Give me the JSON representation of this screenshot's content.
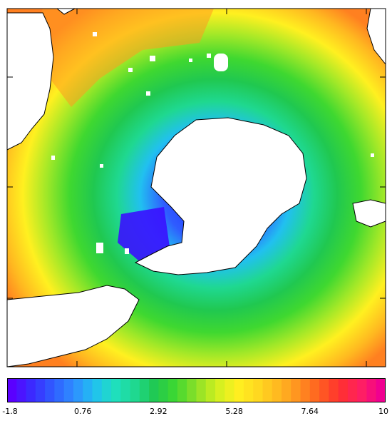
{
  "map": {
    "projection": "south-polar-stereographic",
    "subject": "sea surface field around Antarctica",
    "land_color": "#ffffff",
    "coast_color": "#000000"
  },
  "colorbar": {
    "min": -1.8,
    "max": 10,
    "colors": [
      "#5a00ff",
      "#3a2cff",
      "#2f5cff",
      "#2f8cff",
      "#21c0f0",
      "#1fe0c0",
      "#1fd890",
      "#20c850",
      "#3fd830",
      "#8ce028",
      "#d0f020",
      "#fff020",
      "#ffd820",
      "#ffb820",
      "#ff9020",
      "#ff6020",
      "#ff3030",
      "#ff2060",
      "#f00090"
    ],
    "ticks": [
      "-1.8",
      "0.76",
      "2.92",
      "5.28",
      "7.64",
      "10"
    ]
  }
}
